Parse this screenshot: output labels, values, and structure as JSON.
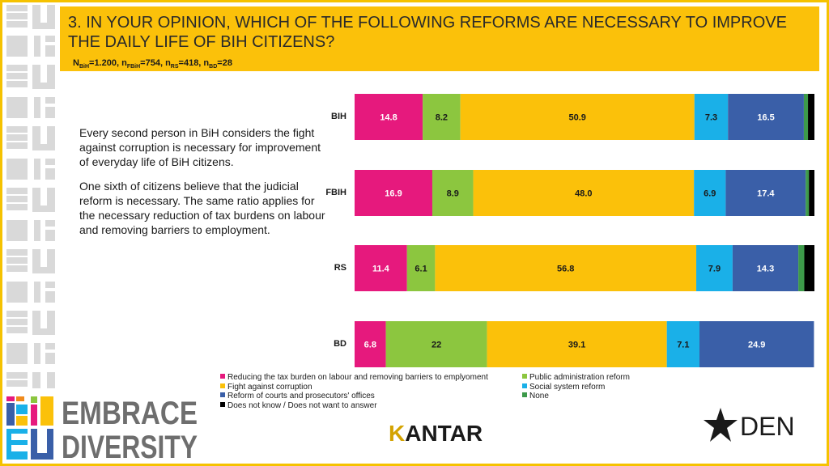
{
  "header": {
    "title": "3. IN YOUR OPINION, WHICH OF THE FOLLOWING REFORMS ARE NECESSARY TO IMPROVE THE DAILY LIFE OF BIH CITIZENS?",
    "sample_parts": [
      {
        "t": "N",
        "s": "BiH",
        "v": "=1.200, "
      },
      {
        "t": "n",
        "s": "FBiH",
        "v": "=754, "
      },
      {
        "t": "n",
        "s": "RS",
        "v": "=418, "
      },
      {
        "t": "n",
        "s": "BD",
        "v": "=28"
      }
    ]
  },
  "body": {
    "para1": "Every second person in BiH considers the fight against corruption is necessary for improvement of everyday life of BiH citizens.",
    "para2": "One sixth of citizens believe that the judicial reform is necessary. The same ratio applies for the necessary reduction of tax burdens on labour and removing barriers to employment."
  },
  "chart_data": {
    "type": "bar",
    "orientation": "horizontal",
    "stacked": true,
    "categories": [
      "BIH",
      "FBIH",
      "RS",
      "BD"
    ],
    "series": [
      {
        "name": "Reducing the tax burden on labour and removing barriers to emplyoment",
        "color": "#e6197d",
        "values": [
          14.8,
          16.9,
          11.4,
          6.8
        ],
        "labels": [
          "14.8",
          "16.9",
          "11.4",
          "6.8"
        ]
      },
      {
        "name": "Public administration reform",
        "color": "#8cc63f",
        "values": [
          8.2,
          8.9,
          6.1,
          22
        ],
        "labels": [
          "8.2",
          "8.9",
          "6.1",
          "22"
        ]
      },
      {
        "name": "Fight against corruption",
        "color": "#fbc10a",
        "values": [
          50.9,
          48.0,
          56.8,
          39.1
        ],
        "labels": [
          "50.9",
          "48.0",
          "56.8",
          "39.1"
        ]
      },
      {
        "name": "Social system reform",
        "color": "#1ab0e8",
        "values": [
          7.3,
          6.9,
          7.9,
          7.1
        ],
        "labels": [
          "7.3",
          "6.9",
          "7.9",
          "7.1"
        ]
      },
      {
        "name": "Reform of courts and prosecutors' offices",
        "color": "#3a5fa8",
        "values": [
          16.5,
          17.4,
          14.3,
          24.9
        ],
        "labels": [
          "16.5",
          "17.4",
          "14.3",
          "24.9"
        ]
      },
      {
        "name": "None",
        "color": "#3d9a4a",
        "values": [
          0.9,
          0.7,
          1.3,
          0
        ],
        "labels": [
          "",
          "",
          "",
          ""
        ]
      },
      {
        "name": "Does not know / Does not want to answer",
        "color": "#000000",
        "values": [
          1.4,
          1.2,
          2.2,
          0
        ],
        "labels": [
          "",
          "",
          "",
          ""
        ]
      }
    ],
    "xlim": [
      0,
      100
    ],
    "legend_order": [
      0,
      2,
      4,
      6,
      1,
      3,
      5
    ]
  },
  "logos": {
    "embrace_line1": "EMBRACE",
    "embrace_line2": "DIVERSITY",
    "kantar_k": "K",
    "kantar_rest": "ANTAR",
    "den": "DEN"
  },
  "colors": {
    "accent": "#fbc10a",
    "logo_gray": "#6e6e6e"
  }
}
